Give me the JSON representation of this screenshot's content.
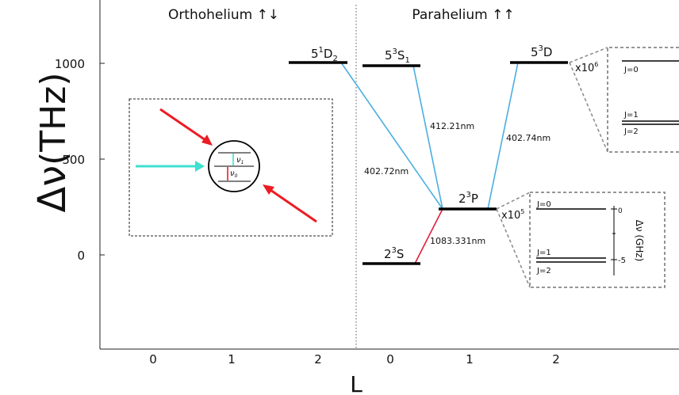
{
  "headers": {
    "left": "Orthohelium ↑↓",
    "right": "Parahelium ↑↑"
  },
  "y_axis": {
    "symbol": "Δν",
    "unit": "(THz)",
    "ticks": [
      "1000",
      "500",
      "0"
    ]
  },
  "x_axis": {
    "title": "L",
    "ticks_left": [
      "0",
      "1",
      "2"
    ],
    "ticks_right": [
      "0",
      "1",
      "2"
    ]
  },
  "levels": {
    "d1": {
      "base": "5",
      "sup": "1",
      "main": "D",
      "sub": "2"
    },
    "s1": {
      "base": "5",
      "sup": "3",
      "main": "S",
      "sub": "1"
    },
    "d3": {
      "base": "5",
      "sup": "3",
      "main": "D",
      "sub": ""
    },
    "p3": {
      "base": "2",
      "sup": "3",
      "main": "P",
      "sub": ""
    },
    "s3": {
      "base": "2",
      "sup": "3",
      "main": "S",
      "sub": ""
    }
  },
  "transitions": {
    "t1": "402.72nm",
    "t2": "412.21nm",
    "t3": "402.74nm",
    "t4": "1083.331nm"
  },
  "inset_upper": {
    "scale_base": "x10",
    "scale_exp": "6",
    "j_labels": [
      "J=0",
      "J=1",
      "J=2"
    ]
  },
  "inset_lower": {
    "scale_base": "x10",
    "scale_exp": "5",
    "j_labels": [
      "J=0",
      "J=1",
      "J=2"
    ],
    "axis_ticks": [
      "0",
      "-5"
    ],
    "axis_label": "Δν (GHz)"
  },
  "cartoon": {
    "nu1": "ν",
    "nu1_sub": "1",
    "nu0": "ν",
    "nu0_sub": "0"
  },
  "colors": {
    "blue": "#4aaee0",
    "red": "#e0203a",
    "arrow_red": "#ec1c24",
    "arrow_cyan": "#3ee0cf",
    "level": "#000000",
    "dash": "#888888"
  }
}
